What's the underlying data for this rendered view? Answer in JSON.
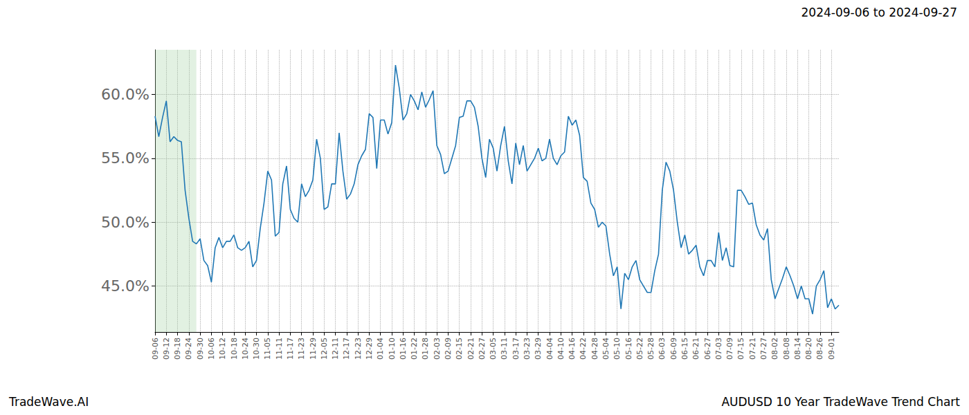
{
  "chart_data": {
    "type": "line",
    "title": "AUDUSD 10 Year TradeWave Trend Chart",
    "subtitle": "2024-09-06 to 2024-09-27",
    "annotations": [
      "TradeWave.AI"
    ],
    "categories": [
      "09-06",
      null,
      null,
      "09-12",
      null,
      null,
      "09-18",
      null,
      null,
      "09-24",
      null,
      null,
      "09-30",
      null,
      null,
      "10-06",
      null,
      null,
      "10-12",
      null,
      null,
      "10-18",
      null,
      null,
      "10-24",
      null,
      null,
      "10-30",
      null,
      null,
      "11-05",
      null,
      null,
      "11-11",
      null,
      null,
      "11-17",
      null,
      null,
      "11-23",
      null,
      null,
      "11-29",
      null,
      null,
      "12-05",
      null,
      null,
      "12-11",
      null,
      null,
      "12-17",
      null,
      null,
      "12-23",
      null,
      null,
      "12-29",
      null,
      null,
      "01-04",
      null,
      null,
      "01-10",
      null,
      null,
      "01-16",
      null,
      null,
      "01-22",
      null,
      null,
      "01-28",
      null,
      null,
      "02-03",
      null,
      null,
      "02-09",
      null,
      null,
      "02-15",
      null,
      null,
      "02-21",
      null,
      null,
      "02-27",
      null,
      null,
      "03-05",
      null,
      null,
      "03-11",
      null,
      null,
      "03-17",
      null,
      null,
      "03-23",
      null,
      null,
      "03-29",
      null,
      null,
      "04-04",
      null,
      null,
      "04-10",
      null,
      null,
      "04-16",
      null,
      null,
      "04-22",
      null,
      null,
      "04-28",
      null,
      null,
      "05-04",
      null,
      null,
      "05-10",
      null,
      null,
      "05-16",
      null,
      null,
      "05-22",
      null,
      null,
      "05-28",
      null,
      null,
      "06-03",
      null,
      null,
      "06-09",
      null,
      null,
      "06-15",
      null,
      null,
      "06-21",
      null,
      null,
      "06-27",
      null,
      null,
      "07-03",
      null,
      null,
      "07-09",
      null,
      null,
      "07-15",
      null,
      null,
      "07-21",
      null,
      null,
      "07-27",
      null,
      null,
      "08-02",
      null,
      null,
      "08-08",
      null,
      null,
      "08-14",
      null,
      null,
      "08-20",
      null,
      null,
      "08-26",
      null,
      null,
      "09-01",
      null,
      null
    ],
    "values": [
      58.3,
      56.7,
      58.2,
      59.5,
      56.3,
      56.7,
      56.4,
      56.3,
      52.5,
      50.3,
      48.5,
      48.3,
      48.7,
      47.0,
      46.6,
      45.3,
      48.0,
      48.8,
      48.0,
      48.5,
      48.5,
      49.0,
      48.0,
      47.8,
      48.0,
      48.5,
      46.5,
      47.0,
      49.5,
      51.5,
      54.0,
      53.3,
      48.9,
      49.2,
      53.0,
      54.4,
      51.0,
      50.3,
      50.0,
      53.0,
      52.0,
      52.5,
      53.3,
      56.5,
      55.0,
      51.0,
      51.2,
      53.0,
      53.0,
      57.0,
      54.0,
      51.8,
      52.2,
      53.0,
      54.5,
      55.2,
      55.7,
      58.5,
      58.2,
      54.2,
      58.0,
      58.0,
      56.9,
      57.8,
      62.3,
      60.5,
      58.0,
      58.5,
      60.0,
      59.5,
      58.8,
      60.2,
      59.0,
      59.6,
      60.3,
      56.0,
      55.3,
      53.8,
      54.0,
      55.0,
      56.0,
      58.2,
      58.3,
      59.5,
      59.5,
      59.0,
      57.5,
      55.0,
      53.5,
      56.5,
      55.8,
      54.0,
      56.0,
      57.5,
      54.8,
      53.0,
      56.2,
      54.5,
      56.0,
      54.0,
      54.5,
      55.0,
      55.8,
      54.8,
      55.0,
      56.5,
      55.0,
      54.5,
      55.2,
      55.5,
      58.3,
      57.6,
      58.0,
      56.8,
      53.5,
      53.2,
      51.5,
      51.0,
      49.6,
      50.0,
      49.7,
      47.5,
      45.8,
      46.5,
      43.2,
      46.0,
      45.5,
      46.5,
      47.0,
      45.5,
      45.0,
      44.5,
      44.5,
      46.2,
      47.5,
      52.5,
      54.7,
      54.0,
      52.5,
      50.0,
      48.0,
      49.0,
      47.5,
      47.8,
      48.2,
      46.5,
      45.8,
      47.0,
      47.0,
      46.5,
      49.2,
      47.0,
      48.0,
      46.6,
      46.5,
      52.5,
      52.5,
      52.0,
      51.4,
      51.5,
      49.8,
      49.0,
      48.6,
      49.5,
      45.5,
      44.0,
      44.8,
      45.6,
      46.5,
      45.8,
      45.0,
      44.0,
      45.0,
      44.0,
      44.0,
      42.8,
      45.0,
      45.5,
      46.2,
      43.3,
      44.0,
      43.2,
      43.5
    ],
    "color": "#1f77b4",
    "highlight_range": [
      0,
      11
    ],
    "ylim": [
      41.4,
      63.5
    ],
    "yticks": [
      {
        "value": 45,
        "label": "45.0%"
      },
      {
        "value": 50,
        "label": "50.0%"
      },
      {
        "value": 55,
        "label": "55.0%"
      },
      {
        "value": 60,
        "label": "60.0%"
      }
    ],
    "grid": true
  }
}
